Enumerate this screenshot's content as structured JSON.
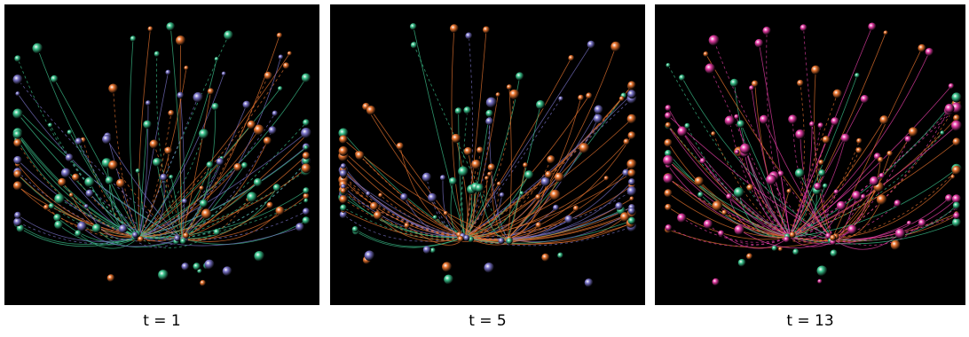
{
  "panels": [
    {
      "caption": "t = 1",
      "colors": [
        "#3cc48e",
        "#7b74c9",
        "#e8742f"
      ]
    },
    {
      "caption": "t = 5",
      "colors": [
        "#e8742f",
        "#7b74c9",
        "#3cc48e"
      ]
    },
    {
      "caption": "t = 13",
      "colors": [
        "#e83fa8",
        "#e8742f",
        "#3cc48e"
      ]
    }
  ]
}
